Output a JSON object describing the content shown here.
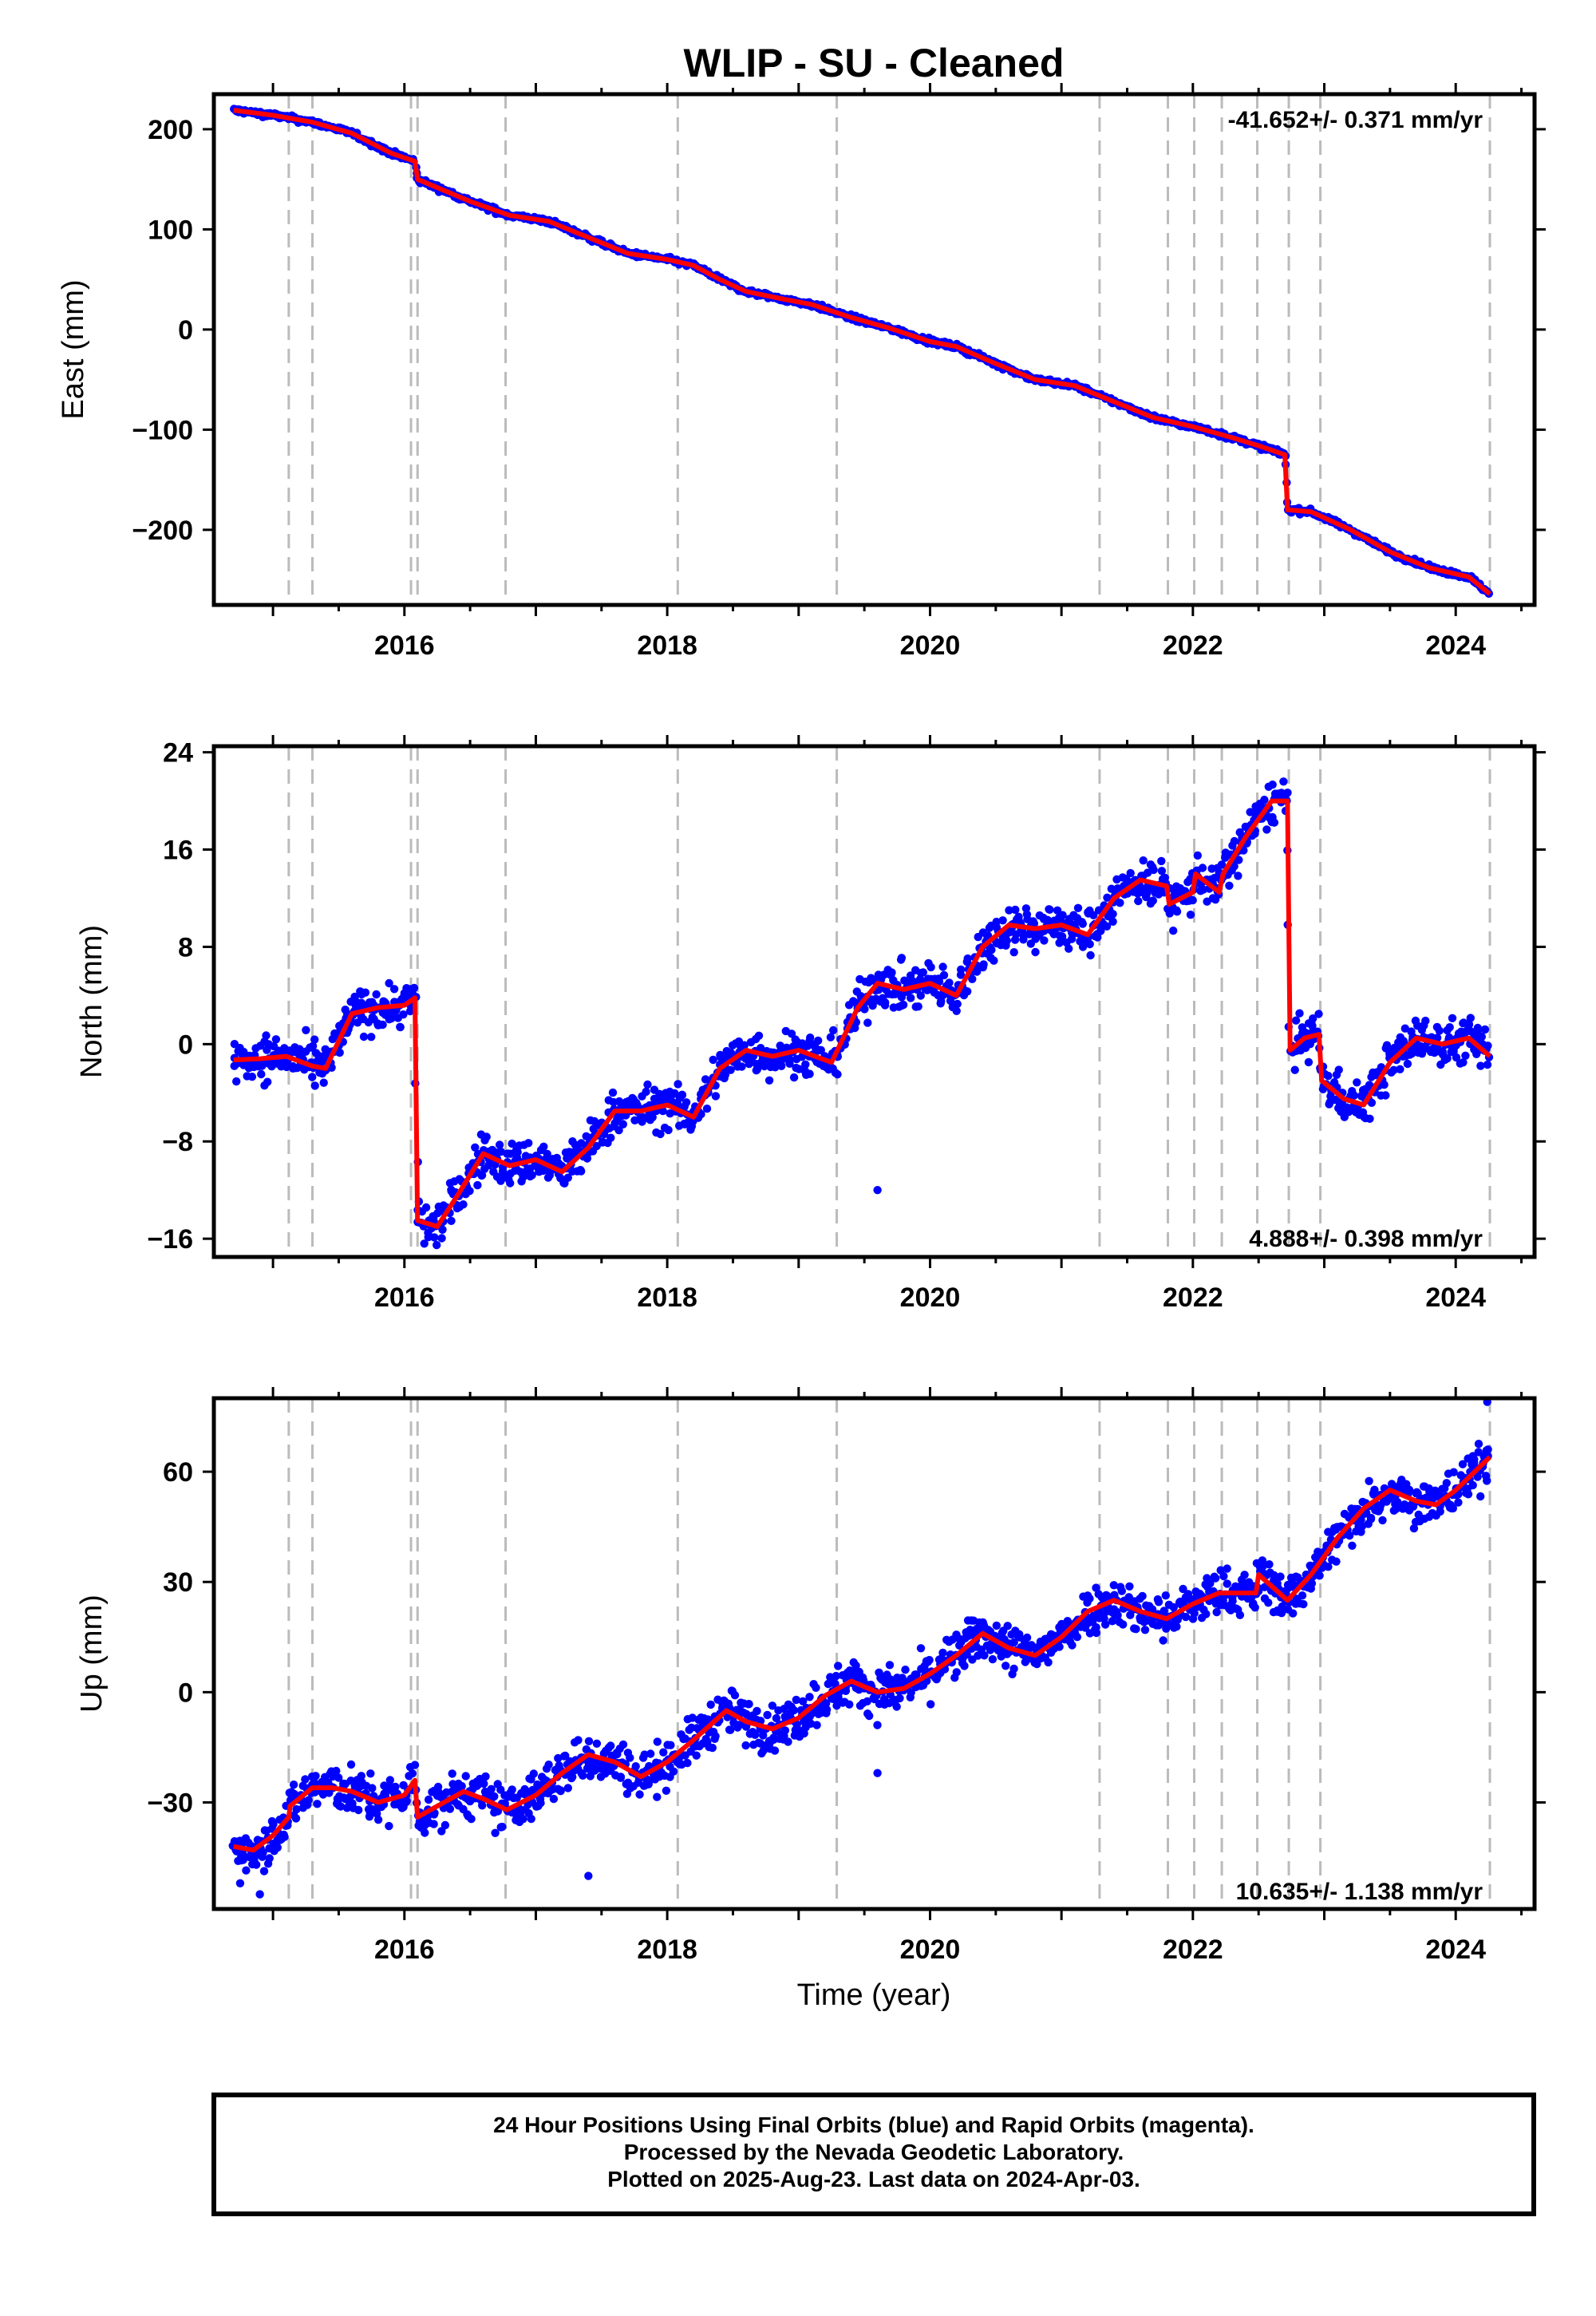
{
  "title": "WLIP  - SU - Cleaned",
  "xlabel": "Time (year)",
  "x_ticks": [
    "2016",
    "2018",
    "2020",
    "2022",
    "2024"
  ],
  "colors": {
    "data_points": "#0000ff",
    "model_line": "#ff0000",
    "event_lines": "#bbbbbb",
    "axes": "#000000"
  },
  "chart_data": [
    {
      "type": "scatter",
      "panel": "east",
      "ylabel": "East (mm)",
      "rate": "-41.652+/- 0.371 mm/yr",
      "rate_position": "top-right",
      "xlim": [
        2014.55,
        2024.6
      ],
      "ylim": [
        -275,
        235
      ],
      "y_ticks": [
        200,
        100,
        0,
        -100,
        -200
      ],
      "y_tick_labels": [
        "200",
        "100",
        "0",
        "−100",
        "−200"
      ],
      "event_lines_x": [
        2015.12,
        2015.3,
        2016.05,
        2016.1,
        2016.77,
        2018.08,
        2019.29,
        2021.29,
        2021.81,
        2022.01,
        2022.22,
        2022.49,
        2022.73,
        2022.97,
        2024.26
      ],
      "noise": 1.8,
      "model_line": [
        [
          2014.7,
          219
        ],
        [
          2015.0,
          214
        ],
        [
          2015.3,
          207
        ],
        [
          2015.6,
          196
        ],
        [
          2015.9,
          176
        ],
        [
          2016.08,
          168
        ],
        [
          2016.1,
          150
        ],
        [
          2016.5,
          128
        ],
        [
          2016.8,
          114
        ],
        [
          2017.1,
          108
        ],
        [
          2017.4,
          92
        ],
        [
          2017.7,
          76
        ],
        [
          2018.0,
          70
        ],
        [
          2018.2,
          64
        ],
        [
          2018.4,
          50
        ],
        [
          2018.6,
          38
        ],
        [
          2018.9,
          30
        ],
        [
          2019.1,
          25
        ],
        [
          2019.4,
          12
        ],
        [
          2019.7,
          1
        ],
        [
          2020.0,
          -12
        ],
        [
          2020.2,
          -17
        ],
        [
          2020.5,
          -34
        ],
        [
          2020.8,
          -50
        ],
        [
          2021.1,
          -56
        ],
        [
          2021.4,
          -72
        ],
        [
          2021.7,
          -88
        ],
        [
          2022.0,
          -97
        ],
        [
          2022.3,
          -108
        ],
        [
          2022.5,
          -116
        ],
        [
          2022.7,
          -125
        ],
        [
          2022.72,
          -180
        ],
        [
          2022.9,
          -182
        ],
        [
          2023.2,
          -200
        ],
        [
          2023.5,
          -222
        ],
        [
          2023.8,
          -238
        ],
        [
          2024.1,
          -247
        ],
        [
          2024.26,
          -264
        ]
      ]
    },
    {
      "type": "scatter",
      "panel": "north",
      "ylabel": "North (mm)",
      "rate": "4.888+/- 0.398 mm/yr",
      "rate_position": "bottom-right",
      "xlim": [
        2014.55,
        2024.6
      ],
      "ylim": [
        -17.5,
        24.5
      ],
      "y_ticks": [
        24,
        16,
        8,
        0,
        -8,
        -16
      ],
      "y_tick_labels": [
        "24",
        "16",
        "8",
        "0",
        "−8",
        "−16"
      ],
      "event_lines_x": [
        2015.12,
        2015.3,
        2016.05,
        2016.1,
        2016.77,
        2018.08,
        2019.29,
        2021.29,
        2021.81,
        2022.01,
        2022.22,
        2022.49,
        2022.73,
        2022.97,
        2024.26
      ],
      "noise": 1.3,
      "outliers": [
        [
          2019.6,
          -12
        ]
      ],
      "model_line": [
        [
          2014.7,
          -1.3
        ],
        [
          2014.9,
          -1.2
        ],
        [
          2015.1,
          -1.0
        ],
        [
          2015.3,
          -1.8
        ],
        [
          2015.4,
          -2.0
        ],
        [
          2015.6,
          2.5
        ],
        [
          2015.8,
          3.0
        ],
        [
          2016.0,
          3.2
        ],
        [
          2016.08,
          3.8
        ],
        [
          2016.1,
          -14.5
        ],
        [
          2016.25,
          -15.0
        ],
        [
          2016.4,
          -12.5
        ],
        [
          2016.6,
          -9.0
        ],
        [
          2016.8,
          -10.0
        ],
        [
          2017.0,
          -9.5
        ],
        [
          2017.2,
          -10.5
        ],
        [
          2017.4,
          -8.5
        ],
        [
          2017.6,
          -5.5
        ],
        [
          2017.8,
          -5.5
        ],
        [
          2018.0,
          -5.0
        ],
        [
          2018.2,
          -6.0
        ],
        [
          2018.4,
          -2.0
        ],
        [
          2018.6,
          -0.5
        ],
        [
          2018.8,
          -1.0
        ],
        [
          2019.0,
          -0.5
        ],
        [
          2019.25,
          -1.5
        ],
        [
          2019.45,
          3.0
        ],
        [
          2019.6,
          5.0
        ],
        [
          2019.8,
          4.5
        ],
        [
          2020.0,
          5.0
        ],
        [
          2020.2,
          4.0
        ],
        [
          2020.4,
          8.0
        ],
        [
          2020.6,
          9.8
        ],
        [
          2020.8,
          9.5
        ],
        [
          2021.0,
          9.8
        ],
        [
          2021.2,
          9.0
        ],
        [
          2021.4,
          12.0
        ],
        [
          2021.6,
          13.5
        ],
        [
          2021.8,
          13.0
        ],
        [
          2021.82,
          11.5
        ],
        [
          2022.0,
          12.5
        ],
        [
          2022.02,
          14.0
        ],
        [
          2022.2,
          12.5
        ],
        [
          2022.23,
          14.0
        ],
        [
          2022.4,
          17.0
        ],
        [
          2022.6,
          20.0
        ],
        [
          2022.72,
          20.0
        ],
        [
          2022.74,
          -0.5
        ],
        [
          2022.85,
          0.5
        ],
        [
          2022.96,
          0.8
        ],
        [
          2022.98,
          -3.0
        ],
        [
          2023.15,
          -4.5
        ],
        [
          2023.3,
          -5.0
        ],
        [
          2023.5,
          -1.5
        ],
        [
          2023.7,
          0.5
        ],
        [
          2023.9,
          0.0
        ],
        [
          2024.1,
          0.5
        ],
        [
          2024.26,
          -1.0
        ]
      ]
    },
    {
      "type": "scatter",
      "panel": "up",
      "ylabel": "Up (mm)",
      "rate": "10.635+/- 1.138 mm/yr",
      "rate_position": "bottom-right",
      "xlim": [
        2014.55,
        2024.6
      ],
      "ylim": [
        -59,
        80
      ],
      "y_ticks": [
        60,
        30,
        0,
        -30
      ],
      "y_tick_labels": [
        "60",
        "30",
        "0",
        "−30"
      ],
      "event_lines_x": [
        2015.12,
        2015.3,
        2016.05,
        2016.1,
        2016.77,
        2018.08,
        2019.29,
        2021.29,
        2021.81,
        2022.01,
        2022.22,
        2022.49,
        2022.73,
        2022.97,
        2024.26
      ],
      "noise": 4.5,
      "outliers": [
        [
          2017.4,
          -50
        ],
        [
          2014.75,
          -52
        ],
        [
          2014.9,
          -55
        ],
        [
          2019.6,
          -22
        ],
        [
          2024.24,
          79
        ]
      ],
      "model_line": [
        [
          2014.7,
          -42
        ],
        [
          2014.85,
          -43
        ],
        [
          2015.0,
          -39
        ],
        [
          2015.12,
          -34
        ],
        [
          2015.13,
          -31
        ],
        [
          2015.3,
          -26
        ],
        [
          2015.45,
          -26
        ],
        [
          2015.6,
          -27
        ],
        [
          2015.8,
          -30
        ],
        [
          2016.0,
          -28
        ],
        [
          2016.08,
          -24
        ],
        [
          2016.1,
          -34
        ],
        [
          2016.3,
          -30
        ],
        [
          2016.45,
          -27
        ],
        [
          2016.6,
          -29
        ],
        [
          2016.78,
          -32
        ],
        [
          2017.0,
          -28
        ],
        [
          2017.2,
          -22
        ],
        [
          2017.4,
          -17
        ],
        [
          2017.6,
          -19
        ],
        [
          2017.8,
          -23
        ],
        [
          2018.0,
          -19
        ],
        [
          2018.2,
          -13
        ],
        [
          2018.45,
          -5
        ],
        [
          2018.6,
          -8
        ],
        [
          2018.8,
          -10
        ],
        [
          2019.0,
          -7
        ],
        [
          2019.2,
          -1
        ],
        [
          2019.4,
          3
        ],
        [
          2019.6,
          0
        ],
        [
          2019.8,
          1
        ],
        [
          2020.0,
          5
        ],
        [
          2020.2,
          10
        ],
        [
          2020.4,
          16
        ],
        [
          2020.6,
          12
        ],
        [
          2020.8,
          10
        ],
        [
          2021.0,
          15
        ],
        [
          2021.2,
          22
        ],
        [
          2021.4,
          25
        ],
        [
          2021.6,
          22
        ],
        [
          2021.8,
          20
        ],
        [
          2022.0,
          24
        ],
        [
          2022.2,
          27
        ],
        [
          2022.48,
          27
        ],
        [
          2022.5,
          32
        ],
        [
          2022.72,
          25
        ],
        [
          2022.9,
          32
        ],
        [
          2023.1,
          42
        ],
        [
          2023.3,
          50
        ],
        [
          2023.5,
          55
        ],
        [
          2023.7,
          52
        ],
        [
          2023.85,
          51
        ],
        [
          2024.0,
          55
        ],
        [
          2024.26,
          64
        ]
      ]
    }
  ],
  "footer": {
    "line1": "24 Hour Positions Using Final Orbits (blue) and Rapid Orbits (magenta).",
    "line2": "Processed by the Nevada Geodetic Laboratory.",
    "line3": "Plotted on 2025-Aug-23. Last data on 2024-Apr-03."
  }
}
